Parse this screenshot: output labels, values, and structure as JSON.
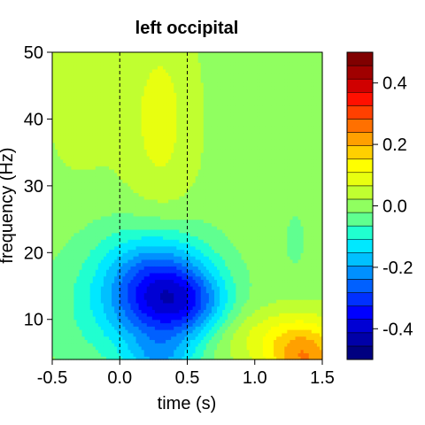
{
  "chart_data": {
    "type": "heatmap",
    "title": "left occipital",
    "xlabel": "time (s)",
    "ylabel": "frequency (Hz)",
    "xlim": [
      -0.5,
      1.5
    ],
    "ylim": [
      4,
      50
    ],
    "x_ticks": [
      -0.5,
      0.0,
      0.5,
      1.0,
      1.5
    ],
    "x_tick_labels": [
      "-0.5",
      "0.0",
      "0.5",
      "1.0",
      "1.5"
    ],
    "y_ticks": [
      10,
      20,
      30,
      40,
      50
    ],
    "y_tick_labels": [
      "10",
      "20",
      "30",
      "40",
      "50"
    ],
    "reference_lines_x": [
      0.0,
      0.5
    ],
    "colorbar": {
      "min": -0.5,
      "max": 0.5,
      "step": 0.05,
      "ticks": [
        0.4,
        0.2,
        0.0,
        -0.2,
        -0.4
      ],
      "tick_labels": [
        "0.4",
        "0.2",
        "0.0",
        "-0.2",
        "-0.4"
      ],
      "colors": [
        "#000080",
        "#0000A8",
        "#0000D4",
        "#0000FF",
        "#0030FF",
        "#0060FF",
        "#0090FF",
        "#00C0FF",
        "#00E8FF",
        "#20FFD0",
        "#60FF90",
        "#90FF60",
        "#C0FF30",
        "#E8FF10",
        "#FFFF00",
        "#FFD000",
        "#FFA000",
        "#FF7000",
        "#FF4000",
        "#FF1000",
        "#D00000",
        "#A00000",
        "#800000"
      ]
    },
    "components": [
      {
        "t": 0.3,
        "f": 13.5,
        "amp": -0.3,
        "st": 0.26,
        "sf": 5.5
      },
      {
        "t": 0.55,
        "f": 12.5,
        "amp": -0.12,
        "st": 0.2,
        "sf": 3.5
      },
      {
        "t": 0.15,
        "f": 17.0,
        "amp": -0.08,
        "st": 0.35,
        "sf": 6.0
      },
      {
        "t": 0.3,
        "f": 40.0,
        "amp": 0.08,
        "st": 0.2,
        "sf": 12.0
      },
      {
        "t": 0.3,
        "f": 4.0,
        "amp": -0.12,
        "st": 0.18,
        "sf": 2.5
      },
      {
        "t": 1.38,
        "f": 4.0,
        "amp": 0.22,
        "st": 0.2,
        "sf": 4.0
      },
      {
        "t": 1.05,
        "f": 7.5,
        "amp": 0.07,
        "st": 0.3,
        "sf": 3.0
      },
      {
        "t": -0.2,
        "f": 9.0,
        "amp": -0.04,
        "st": 0.3,
        "sf": 6.0
      },
      {
        "t": -0.3,
        "f": 45.0,
        "amp": 0.05,
        "st": 0.2,
        "sf": 10.0
      },
      {
        "t": 1.3,
        "f": 22.0,
        "amp": -0.04,
        "st": 0.06,
        "sf": 3.0
      }
    ]
  }
}
